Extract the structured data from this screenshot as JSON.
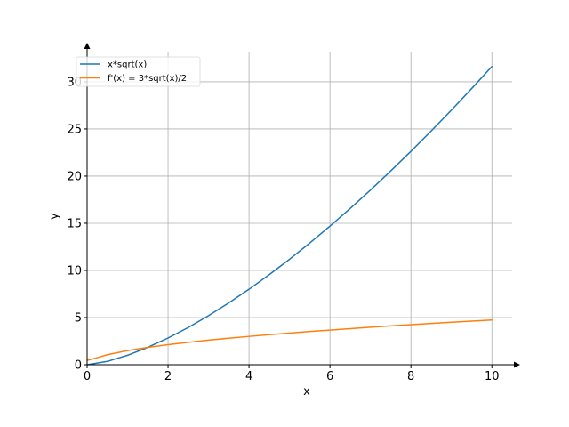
{
  "chart_data": {
    "type": "line",
    "title": "",
    "xlabel": "x",
    "ylabel": "y",
    "xlim": [
      0,
      10.5
    ],
    "ylim": [
      0,
      33.2
    ],
    "xticks": [
      0,
      2,
      4,
      6,
      8,
      10
    ],
    "yticks": [
      0,
      5,
      10,
      15,
      20,
      25,
      30
    ],
    "grid": true,
    "legend_position": "top-left",
    "series": [
      {
        "name": "x*sqrt(x)",
        "color": "#1f77b4",
        "x": [
          0,
          0.5,
          1,
          1.5,
          2,
          2.5,
          3,
          3.5,
          4,
          4.5,
          5,
          5.5,
          6,
          6.5,
          7,
          7.5,
          8,
          8.5,
          9,
          9.5,
          10
        ],
        "y": [
          0,
          0.35,
          1,
          1.84,
          2.83,
          3.95,
          5.2,
          6.55,
          8,
          9.55,
          11.18,
          12.9,
          14.7,
          16.57,
          18.52,
          20.54,
          22.63,
          24.78,
          27,
          29.28,
          31.62
        ]
      },
      {
        "name": "f'(x) = 3*sqrt(x)/2",
        "color": "#ff7f0e",
        "x": [
          0,
          0.1,
          0.25,
          0.5,
          1,
          1.5,
          2,
          2.5,
          3,
          3.5,
          4,
          4.5,
          5,
          5.5,
          6,
          6.5,
          7,
          7.5,
          8,
          8.5,
          9,
          9.5,
          10
        ],
        "y": [
          0.47,
          0.57,
          0.75,
          1.06,
          1.5,
          1.84,
          2.12,
          2.37,
          2.6,
          2.81,
          3,
          3.18,
          3.35,
          3.52,
          3.67,
          3.82,
          3.97,
          4.11,
          4.24,
          4.37,
          4.5,
          4.62,
          4.74
        ]
      }
    ]
  }
}
